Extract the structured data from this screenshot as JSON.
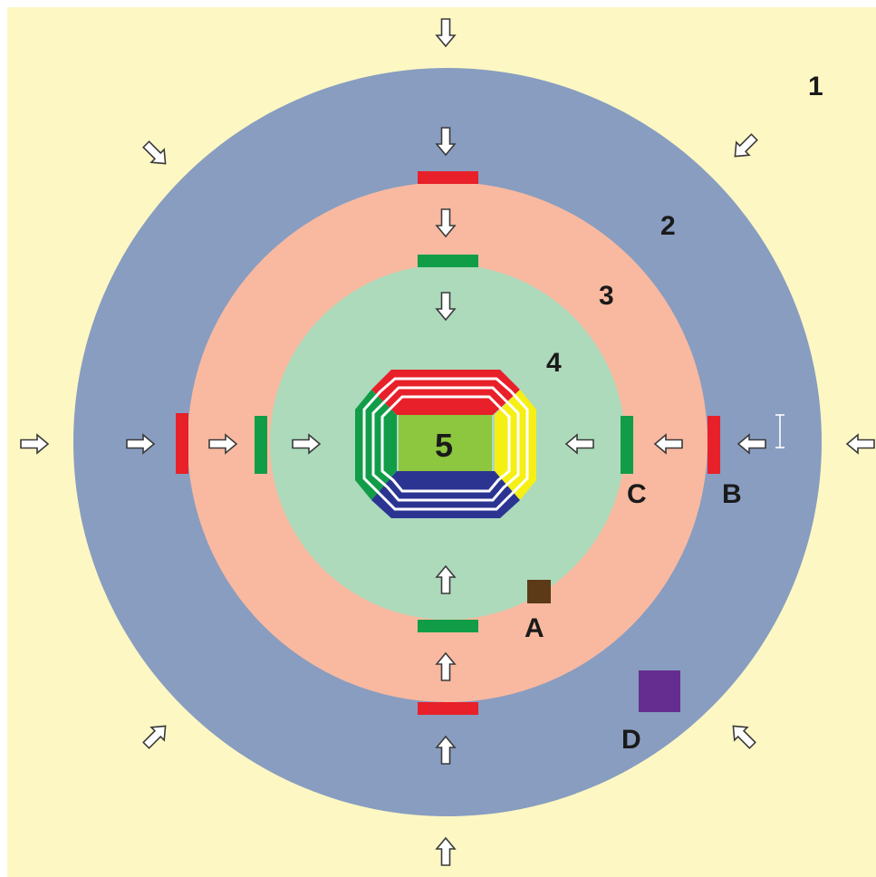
{
  "colors": {
    "zone1": "#fdf7c3",
    "zone2": "#889dc0",
    "zone3": "#f8b9a0",
    "zone4": "#acdabb",
    "pitch": "#8dc63f",
    "outer_gate": "#e8202a",
    "inner_gate": "#119d48",
    "stand_north": "#e8202a",
    "stand_west": "#119d48",
    "stand_east": "#f6ef14",
    "stand_south": "#2b3591",
    "marker_a": "#5c3a17",
    "marker_d": "#662d91"
  },
  "zones": [
    {
      "id": "zone-1",
      "label": "1"
    },
    {
      "id": "zone-2",
      "label": "2"
    },
    {
      "id": "zone-3",
      "label": "3"
    },
    {
      "id": "zone-4",
      "label": "4"
    },
    {
      "id": "zone-5",
      "label": "5"
    }
  ],
  "points": [
    {
      "id": "point-a",
      "label": "A"
    },
    {
      "id": "point-b",
      "label": "B"
    },
    {
      "id": "point-c",
      "label": "C"
    },
    {
      "id": "point-d",
      "label": "D"
    }
  ]
}
